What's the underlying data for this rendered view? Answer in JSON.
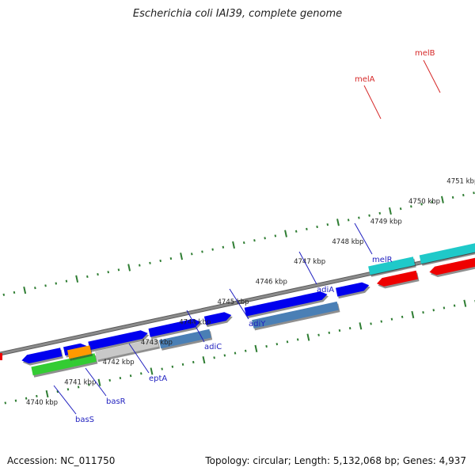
{
  "title": "Escherichia coli IAI39, complete genome",
  "footer": {
    "accession_label": "Accession: NC_011750",
    "summary": "Topology: circular; Length: 5,132,068 bp; Genes: 4,937"
  },
  "colors": {
    "backbone": "#8c8c8c",
    "tick": "#2e7d32",
    "cds_forward": "#0000ee",
    "cds_reverse": "#4a7fb5",
    "rrna_cyan": "#1fc9c9",
    "red": "#ee0000",
    "green": "#33cc33",
    "orange": "#ff9900",
    "gray": "#c8c8c8",
    "label_blue": "#1f1fbf",
    "label_red": "#d62828"
  },
  "scale_labels": [
    "4740 kbp",
    "4741 kbp",
    "4742 kbp",
    "4743 kbp",
    "4744 kbp",
    "4745 kbp",
    "4746 kbp",
    "4747 kbp",
    "4748 kbp",
    "4749 kbp",
    "4750 kbp",
    "4751 kbp"
  ],
  "gene_labels": [
    {
      "name": "basS",
      "color": "blue"
    },
    {
      "name": "basR",
      "color": "blue"
    },
    {
      "name": "eptA",
      "color": "blue"
    },
    {
      "name": "adiC",
      "color": "blue"
    },
    {
      "name": "adiY",
      "color": "blue"
    },
    {
      "name": "adiA",
      "color": "blue"
    },
    {
      "name": "melR",
      "color": "blue"
    },
    {
      "name": "melA",
      "color": "red"
    },
    {
      "name": "melB",
      "color": "red"
    }
  ]
}
